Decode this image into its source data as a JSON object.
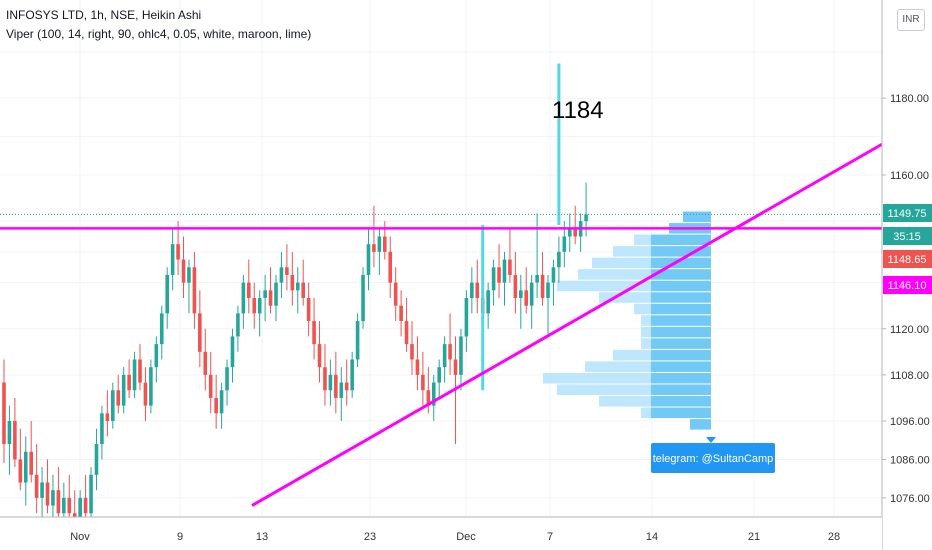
{
  "header": {
    "symbol_line": "INFOSYS LTD, 1h, NSE, Heikin Ashi",
    "indicator_line": "Viper (100, 14, right, 90, ohlc4, 0.05, white, maroon, lime)"
  },
  "currency_button": "INR",
  "annotation": {
    "text": "1184"
  },
  "telegram_label": "telegram: @SultanCamp",
  "colors": {
    "up": "#26a69a",
    "down": "#ef5350",
    "magenta": "#ff00ff",
    "cyan": "#4dd9e8",
    "profile": "#5bc0f5",
    "profile_light": "#b3e2fb",
    "price_green": "#26a69a",
    "price_red": "#ef5350",
    "telegram_bg": "#2196f3"
  },
  "chart_data": {
    "type": "candlestick",
    "style": "Heikin Ashi",
    "interval": "1h",
    "y_axis": {
      "range": [
        1072,
        1195
      ],
      "ticks": [
        1076,
        1086,
        1096,
        1108,
        1120,
        1160,
        1180
      ],
      "tick_labels": [
        "1076.00",
        "1086.00",
        "1096.00",
        "1108.00",
        "1120.00",
        "1160.00",
        "1180.00"
      ]
    },
    "x_axis": {
      "tick_labels": [
        "Nov",
        "9",
        "13",
        "23",
        "Dec",
        "7",
        "14",
        "21",
        "28"
      ]
    },
    "price_tags": [
      {
        "label": "1149.75",
        "value": 1149.75,
        "color": "#26a69a",
        "style": "solid"
      },
      {
        "label": "35:15",
        "value": 1145.9,
        "color": "#26a69a",
        "style": "solid"
      },
      {
        "label": "1148.65",
        "value": 1142.4,
        "color": "#ef5350",
        "style": "solid"
      },
      {
        "label": "1146.10",
        "value": 1138.6,
        "color": "#ff00ff",
        "style": "solid"
      }
    ],
    "lines": {
      "resistance": {
        "value": 1146.1,
        "color": "#ff00ff"
      },
      "support": {
        "from": [
          13,
          1074
        ],
        "to": [
          35.5,
          1168
        ],
        "color": "#ff00ff"
      },
      "current_price": 1149.75
    },
    "volume_profile": [
      {
        "price": 1149,
        "length": 2.0
      },
      {
        "price": 1146,
        "length": 3.0
      },
      {
        "price": 1143,
        "length": 5.5
      },
      {
        "price": 1140,
        "length": 7.0
      },
      {
        "price": 1137,
        "length": 8.5
      },
      {
        "price": 1134,
        "length": 9.5
      },
      {
        "price": 1131,
        "length": 11.0
      },
      {
        "price": 1128,
        "length": 8.0
      },
      {
        "price": 1125,
        "length": 5.5
      },
      {
        "price": 1122,
        "length": 5.0
      },
      {
        "price": 1119,
        "length": 5.0
      },
      {
        "price": 1116,
        "length": 5.0
      },
      {
        "price": 1113,
        "length": 7.0
      },
      {
        "price": 1110,
        "length": 9.0
      },
      {
        "price": 1107,
        "length": 12.0
      },
      {
        "price": 1104,
        "length": 11.0
      },
      {
        "price": 1101,
        "length": 8.0
      },
      {
        "price": 1098,
        "length": 5.0
      },
      {
        "price": 1095,
        "length": 1.5
      }
    ],
    "candles": [
      {
        "o": 1106,
        "h": 1112,
        "l": 1085,
        "c": 1090
      },
      {
        "o": 1090,
        "h": 1100,
        "l": 1082,
        "c": 1096
      },
      {
        "o": 1096,
        "h": 1102,
        "l": 1084,
        "c": 1086
      },
      {
        "o": 1086,
        "h": 1094,
        "l": 1078,
        "c": 1080
      },
      {
        "o": 1080,
        "h": 1092,
        "l": 1074,
        "c": 1088
      },
      {
        "o": 1088,
        "h": 1096,
        "l": 1080,
        "c": 1082
      },
      {
        "o": 1082,
        "h": 1090,
        "l": 1072,
        "c": 1076
      },
      {
        "o": 1076,
        "h": 1084,
        "l": 1070,
        "c": 1080
      },
      {
        "o": 1080,
        "h": 1086,
        "l": 1072,
        "c": 1074
      },
      {
        "o": 1074,
        "h": 1082,
        "l": 1068,
        "c": 1078
      },
      {
        "o": 1078,
        "h": 1084,
        "l": 1070,
        "c": 1072
      },
      {
        "o": 1072,
        "h": 1080,
        "l": 1066,
        "c": 1076
      },
      {
        "o": 1076,
        "h": 1082,
        "l": 1068,
        "c": 1072
      },
      {
        "o": 1072,
        "h": 1078,
        "l": 1066,
        "c": 1070
      },
      {
        "o": 1070,
        "h": 1078,
        "l": 1066,
        "c": 1076
      },
      {
        "o": 1076,
        "h": 1082,
        "l": 1070,
        "c": 1072
      },
      {
        "o": 1072,
        "h": 1084,
        "l": 1070,
        "c": 1082
      },
      {
        "o": 1082,
        "h": 1094,
        "l": 1078,
        "c": 1090
      },
      {
        "o": 1090,
        "h": 1100,
        "l": 1086,
        "c": 1098
      },
      {
        "o": 1098,
        "h": 1104,
        "l": 1092,
        "c": 1096
      },
      {
        "o": 1096,
        "h": 1106,
        "l": 1094,
        "c": 1104
      },
      {
        "o": 1104,
        "h": 1108,
        "l": 1098,
        "c": 1100
      },
      {
        "o": 1100,
        "h": 1110,
        "l": 1098,
        "c": 1108
      },
      {
        "o": 1108,
        "h": 1112,
        "l": 1102,
        "c": 1104
      },
      {
        "o": 1104,
        "h": 1114,
        "l": 1102,
        "c": 1112
      },
      {
        "o": 1112,
        "h": 1116,
        "l": 1104,
        "c": 1106
      },
      {
        "o": 1106,
        "h": 1110,
        "l": 1096,
        "c": 1100
      },
      {
        "o": 1100,
        "h": 1112,
        "l": 1098,
        "c": 1110
      },
      {
        "o": 1110,
        "h": 1118,
        "l": 1106,
        "c": 1116
      },
      {
        "o": 1116,
        "h": 1126,
        "l": 1112,
        "c": 1124
      },
      {
        "o": 1124,
        "h": 1136,
        "l": 1120,
        "c": 1134
      },
      {
        "o": 1134,
        "h": 1146,
        "l": 1130,
        "c": 1142
      },
      {
        "o": 1142,
        "h": 1148,
        "l": 1134,
        "c": 1138
      },
      {
        "o": 1138,
        "h": 1144,
        "l": 1128,
        "c": 1132
      },
      {
        "o": 1132,
        "h": 1138,
        "l": 1124,
        "c": 1136
      },
      {
        "o": 1136,
        "h": 1140,
        "l": 1120,
        "c": 1124
      },
      {
        "o": 1124,
        "h": 1130,
        "l": 1110,
        "c": 1114
      },
      {
        "o": 1114,
        "h": 1120,
        "l": 1104,
        "c": 1108
      },
      {
        "o": 1108,
        "h": 1114,
        "l": 1098,
        "c": 1102
      },
      {
        "o": 1102,
        "h": 1108,
        "l": 1094,
        "c": 1098
      },
      {
        "o": 1098,
        "h": 1106,
        "l": 1094,
        "c": 1104
      },
      {
        "o": 1104,
        "h": 1112,
        "l": 1100,
        "c": 1110
      },
      {
        "o": 1110,
        "h": 1120,
        "l": 1106,
        "c": 1118
      },
      {
        "o": 1118,
        "h": 1126,
        "l": 1114,
        "c": 1124
      },
      {
        "o": 1124,
        "h": 1134,
        "l": 1120,
        "c": 1132
      },
      {
        "o": 1132,
        "h": 1138,
        "l": 1124,
        "c": 1128
      },
      {
        "o": 1128,
        "h": 1132,
        "l": 1120,
        "c": 1124
      },
      {
        "o": 1124,
        "h": 1130,
        "l": 1118,
        "c": 1128
      },
      {
        "o": 1128,
        "h": 1134,
        "l": 1122,
        "c": 1130
      },
      {
        "o": 1130,
        "h": 1136,
        "l": 1124,
        "c": 1126
      },
      {
        "o": 1126,
        "h": 1134,
        "l": 1122,
        "c": 1132
      },
      {
        "o": 1132,
        "h": 1140,
        "l": 1128,
        "c": 1136
      },
      {
        "o": 1136,
        "h": 1142,
        "l": 1130,
        "c": 1134
      },
      {
        "o": 1134,
        "h": 1140,
        "l": 1126,
        "c": 1130
      },
      {
        "o": 1130,
        "h": 1136,
        "l": 1124,
        "c": 1132
      },
      {
        "o": 1132,
        "h": 1138,
        "l": 1126,
        "c": 1128
      },
      {
        "o": 1128,
        "h": 1132,
        "l": 1118,
        "c": 1122
      },
      {
        "o": 1122,
        "h": 1128,
        "l": 1112,
        "c": 1116
      },
      {
        "o": 1116,
        "h": 1122,
        "l": 1106,
        "c": 1110
      },
      {
        "o": 1110,
        "h": 1116,
        "l": 1100,
        "c": 1104
      },
      {
        "o": 1104,
        "h": 1112,
        "l": 1100,
        "c": 1108
      },
      {
        "o": 1108,
        "h": 1114,
        "l": 1098,
        "c": 1102
      },
      {
        "o": 1102,
        "h": 1110,
        "l": 1096,
        "c": 1106
      },
      {
        "o": 1106,
        "h": 1112,
        "l": 1100,
        "c": 1104
      },
      {
        "o": 1104,
        "h": 1114,
        "l": 1102,
        "c": 1112
      },
      {
        "o": 1112,
        "h": 1124,
        "l": 1110,
        "c": 1122
      },
      {
        "o": 1122,
        "h": 1136,
        "l": 1120,
        "c": 1134
      },
      {
        "o": 1134,
        "h": 1146,
        "l": 1130,
        "c": 1142
      },
      {
        "o": 1142,
        "h": 1152,
        "l": 1136,
        "c": 1140
      },
      {
        "o": 1140,
        "h": 1146,
        "l": 1134,
        "c": 1144
      },
      {
        "o": 1144,
        "h": 1148,
        "l": 1138,
        "c": 1140
      },
      {
        "o": 1140,
        "h": 1144,
        "l": 1128,
        "c": 1132
      },
      {
        "o": 1132,
        "h": 1136,
        "l": 1122,
        "c": 1126
      },
      {
        "o": 1126,
        "h": 1130,
        "l": 1118,
        "c": 1122
      },
      {
        "o": 1122,
        "h": 1128,
        "l": 1114,
        "c": 1116
      },
      {
        "o": 1116,
        "h": 1122,
        "l": 1108,
        "c": 1112
      },
      {
        "o": 1112,
        "h": 1118,
        "l": 1104,
        "c": 1108
      },
      {
        "o": 1108,
        "h": 1114,
        "l": 1100,
        "c": 1104
      },
      {
        "o": 1104,
        "h": 1110,
        "l": 1098,
        "c": 1100
      },
      {
        "o": 1100,
        "h": 1108,
        "l": 1096,
        "c": 1106
      },
      {
        "o": 1106,
        "h": 1112,
        "l": 1102,
        "c": 1110
      },
      {
        "o": 1110,
        "h": 1118,
        "l": 1106,
        "c": 1116
      },
      {
        "o": 1116,
        "h": 1124,
        "l": 1108,
        "c": 1112
      },
      {
        "o": 1112,
        "h": 1118,
        "l": 1090,
        "c": 1108
      },
      {
        "o": 1108,
        "h": 1120,
        "l": 1104,
        "c": 1118
      },
      {
        "o": 1118,
        "h": 1130,
        "l": 1114,
        "c": 1128
      },
      {
        "o": 1128,
        "h": 1136,
        "l": 1124,
        "c": 1132
      },
      {
        "o": 1132,
        "h": 1138,
        "l": 1124,
        "c": 1128
      },
      {
        "o": 1128,
        "h": 1134,
        "l": 1120,
        "c": 1124
      },
      {
        "o": 1124,
        "h": 1132,
        "l": 1120,
        "c": 1130
      },
      {
        "o": 1130,
        "h": 1138,
        "l": 1126,
        "c": 1136
      },
      {
        "o": 1136,
        "h": 1142,
        "l": 1128,
        "c": 1132
      },
      {
        "o": 1132,
        "h": 1140,
        "l": 1126,
        "c": 1138
      },
      {
        "o": 1138,
        "h": 1146,
        "l": 1132,
        "c": 1134
      },
      {
        "o": 1134,
        "h": 1140,
        "l": 1124,
        "c": 1128
      },
      {
        "o": 1128,
        "h": 1134,
        "l": 1120,
        "c": 1130
      },
      {
        "o": 1130,
        "h": 1136,
        "l": 1124,
        "c": 1126
      },
      {
        "o": 1126,
        "h": 1134,
        "l": 1120,
        "c": 1132
      },
      {
        "o": 1132,
        "h": 1150,
        "l": 1128,
        "c": 1134
      },
      {
        "o": 1134,
        "h": 1140,
        "l": 1126,
        "c": 1128
      },
      {
        "o": 1128,
        "h": 1134,
        "l": 1118,
        "c": 1132
      },
      {
        "o": 1132,
        "h": 1138,
        "l": 1126,
        "c": 1136
      },
      {
        "o": 1136,
        "h": 1144,
        "l": 1132,
        "c": 1140
      },
      {
        "o": 1140,
        "h": 1148,
        "l": 1136,
        "c": 1144
      },
      {
        "o": 1144,
        "h": 1150,
        "l": 1140,
        "c": 1146
      },
      {
        "o": 1146,
        "h": 1152,
        "l": 1142,
        "c": 1144
      },
      {
        "o": 1144,
        "h": 1150,
        "l": 1140,
        "c": 1148
      },
      {
        "o": 1148,
        "h": 1158,
        "l": 1144,
        "c": 1149.75
      }
    ],
    "cyan_spikes": [
      {
        "index": 88,
        "high": 1147,
        "low": 1104
      },
      {
        "index": 102,
        "high": 1189,
        "low": 1147
      }
    ]
  }
}
